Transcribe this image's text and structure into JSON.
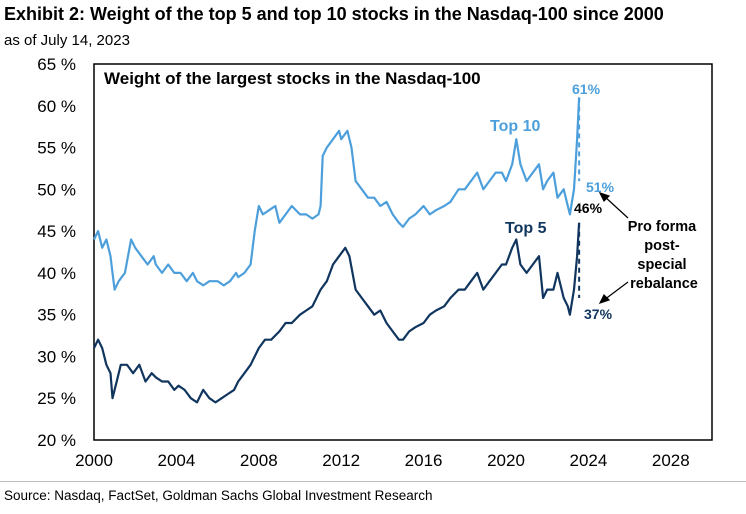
{
  "header": {
    "title": "Exhibit 2: Weight of the top 5 and top 10 stocks in the Nasdaq-100 since 2000",
    "subtitle": "as of July 14, 2023"
  },
  "footer": {
    "source": "Source: Nasdaq, FactSet, Goldman Sachs Global Investment Research"
  },
  "colors": {
    "top10": "#4d9fdc",
    "top5": "#10355e",
    "frame": "#000000"
  },
  "chart_data": {
    "type": "line",
    "title": "Weight of the largest stocks in the Nasdaq-100",
    "xlim": [
      2000,
      2030
    ],
    "ylim": [
      20,
      65
    ],
    "x_ticks": [
      {
        "value": 2000,
        "label": "2000"
      },
      {
        "value": 2004,
        "label": "2004"
      },
      {
        "value": 2008,
        "label": "2008"
      },
      {
        "value": 2012,
        "label": "2012"
      },
      {
        "value": 2016,
        "label": "2016"
      },
      {
        "value": 2020,
        "label": "2020"
      },
      {
        "value": 2024,
        "label": "2024"
      },
      {
        "value": 2028,
        "label": "2028"
      }
    ],
    "y_ticks": [
      {
        "value": 20,
        "label": "20 %"
      },
      {
        "value": 25,
        "label": "25 %"
      },
      {
        "value": 30,
        "label": "30 %"
      },
      {
        "value": 35,
        "label": "35 %"
      },
      {
        "value": 40,
        "label": "40 %"
      },
      {
        "value": 45,
        "label": "45 %"
      },
      {
        "value": 50,
        "label": "50 %"
      },
      {
        "value": 55,
        "label": "55 %"
      },
      {
        "value": 60,
        "label": "60 %"
      },
      {
        "value": 65,
        "label": "65 %"
      }
    ],
    "series": [
      {
        "name": "Top 10",
        "points": [
          [
            2000.0,
            44
          ],
          [
            2000.2,
            45
          ],
          [
            2000.4,
            43
          ],
          [
            2000.6,
            44
          ],
          [
            2000.8,
            42
          ],
          [
            2000.9,
            40
          ],
          [
            2001.0,
            38
          ],
          [
            2001.2,
            39
          ],
          [
            2001.5,
            40
          ],
          [
            2001.8,
            44
          ],
          [
            2002.0,
            43
          ],
          [
            2002.3,
            42
          ],
          [
            2002.6,
            41
          ],
          [
            2002.9,
            42
          ],
          [
            2003.0,
            41
          ],
          [
            2003.3,
            40
          ],
          [
            2003.6,
            41
          ],
          [
            2003.9,
            40
          ],
          [
            2004.2,
            40
          ],
          [
            2004.5,
            39
          ],
          [
            2004.8,
            40
          ],
          [
            2005.0,
            39
          ],
          [
            2005.3,
            38.5
          ],
          [
            2005.6,
            39
          ],
          [
            2006.0,
            39
          ],
          [
            2006.3,
            38.5
          ],
          [
            2006.6,
            39
          ],
          [
            2006.9,
            40
          ],
          [
            2007.0,
            39.5
          ],
          [
            2007.3,
            40
          ],
          [
            2007.6,
            41
          ],
          [
            2007.8,
            45
          ],
          [
            2008.0,
            48
          ],
          [
            2008.2,
            47
          ],
          [
            2008.5,
            47.5
          ],
          [
            2008.8,
            48
          ],
          [
            2009.0,
            46
          ],
          [
            2009.3,
            47
          ],
          [
            2009.6,
            48
          ],
          [
            2010.0,
            47
          ],
          [
            2010.3,
            47
          ],
          [
            2010.6,
            46.5
          ],
          [
            2010.9,
            47
          ],
          [
            2011.0,
            48
          ],
          [
            2011.1,
            54
          ],
          [
            2011.3,
            55
          ],
          [
            2011.6,
            56
          ],
          [
            2011.9,
            57
          ],
          [
            2012.0,
            56
          ],
          [
            2012.3,
            57
          ],
          [
            2012.5,
            55
          ],
          [
            2012.7,
            51
          ],
          [
            2013.0,
            50
          ],
          [
            2013.3,
            49
          ],
          [
            2013.6,
            49
          ],
          [
            2013.9,
            48
          ],
          [
            2014.2,
            48.5
          ],
          [
            2014.5,
            47
          ],
          [
            2014.8,
            46
          ],
          [
            2015.0,
            45.5
          ],
          [
            2015.3,
            46.5
          ],
          [
            2015.6,
            47
          ],
          [
            2016.0,
            48
          ],
          [
            2016.3,
            47
          ],
          [
            2016.6,
            47.5
          ],
          [
            2017.0,
            48
          ],
          [
            2017.3,
            48.5
          ],
          [
            2017.7,
            50
          ],
          [
            2018.0,
            50
          ],
          [
            2018.3,
            51
          ],
          [
            2018.6,
            52
          ],
          [
            2018.9,
            50
          ],
          [
            2019.2,
            51
          ],
          [
            2019.5,
            52
          ],
          [
            2019.8,
            52
          ],
          [
            2020.0,
            51
          ],
          [
            2020.3,
            53
          ],
          [
            2020.5,
            56
          ],
          [
            2020.7,
            53
          ],
          [
            2021.0,
            51
          ],
          [
            2021.3,
            52
          ],
          [
            2021.6,
            53
          ],
          [
            2021.8,
            50
          ],
          [
            2022.0,
            51
          ],
          [
            2022.3,
            52
          ],
          [
            2022.5,
            49
          ],
          [
            2022.8,
            50
          ],
          [
            2023.0,
            48
          ],
          [
            2023.1,
            47
          ],
          [
            2023.3,
            50
          ],
          [
            2023.45,
            56
          ],
          [
            2023.55,
            61
          ]
        ],
        "end_label": "61%",
        "pro_forma": [
          [
            2023.55,
            61
          ],
          [
            2023.55,
            51
          ]
        ],
        "pro_forma_label": "51%"
      },
      {
        "name": "Top 5",
        "points": [
          [
            2000.0,
            31
          ],
          [
            2000.2,
            32
          ],
          [
            2000.4,
            31
          ],
          [
            2000.6,
            29
          ],
          [
            2000.8,
            28
          ],
          [
            2000.9,
            25
          ],
          [
            2001.1,
            27
          ],
          [
            2001.3,
            29
          ],
          [
            2001.6,
            29
          ],
          [
            2001.9,
            28
          ],
          [
            2002.2,
            29
          ],
          [
            2002.5,
            27
          ],
          [
            2002.8,
            28
          ],
          [
            2003.0,
            27.5
          ],
          [
            2003.3,
            27
          ],
          [
            2003.6,
            27
          ],
          [
            2003.9,
            26
          ],
          [
            2004.1,
            26.5
          ],
          [
            2004.4,
            26
          ],
          [
            2004.7,
            25
          ],
          [
            2005.0,
            24.5
          ],
          [
            2005.3,
            26
          ],
          [
            2005.6,
            25
          ],
          [
            2005.9,
            24.5
          ],
          [
            2006.2,
            25
          ],
          [
            2006.5,
            25.5
          ],
          [
            2006.8,
            26
          ],
          [
            2007.0,
            27
          ],
          [
            2007.3,
            28
          ],
          [
            2007.6,
            29
          ],
          [
            2008.0,
            31
          ],
          [
            2008.3,
            32
          ],
          [
            2008.6,
            32
          ],
          [
            2009.0,
            33
          ],
          [
            2009.3,
            34
          ],
          [
            2009.6,
            34
          ],
          [
            2010.0,
            35
          ],
          [
            2010.3,
            35.5
          ],
          [
            2010.6,
            36
          ],
          [
            2011.0,
            38
          ],
          [
            2011.3,
            39
          ],
          [
            2011.6,
            41
          ],
          [
            2011.9,
            42
          ],
          [
            2012.2,
            43
          ],
          [
            2012.4,
            42
          ],
          [
            2012.7,
            38
          ],
          [
            2013.0,
            37
          ],
          [
            2013.3,
            36
          ],
          [
            2013.6,
            35
          ],
          [
            2013.9,
            35.5
          ],
          [
            2014.2,
            34
          ],
          [
            2014.5,
            33
          ],
          [
            2014.8,
            32
          ],
          [
            2015.0,
            32
          ],
          [
            2015.3,
            33
          ],
          [
            2015.6,
            33.5
          ],
          [
            2016.0,
            34
          ],
          [
            2016.3,
            35
          ],
          [
            2016.6,
            35.5
          ],
          [
            2017.0,
            36
          ],
          [
            2017.3,
            37
          ],
          [
            2017.7,
            38
          ],
          [
            2018.0,
            38
          ],
          [
            2018.3,
            39
          ],
          [
            2018.6,
            40
          ],
          [
            2018.9,
            38
          ],
          [
            2019.2,
            39
          ],
          [
            2019.5,
            40
          ],
          [
            2019.8,
            41
          ],
          [
            2020.0,
            41
          ],
          [
            2020.3,
            43
          ],
          [
            2020.5,
            44
          ],
          [
            2020.7,
            41
          ],
          [
            2021.0,
            40
          ],
          [
            2021.3,
            41
          ],
          [
            2021.6,
            42
          ],
          [
            2021.8,
            37
          ],
          [
            2022.0,
            38
          ],
          [
            2022.3,
            38
          ],
          [
            2022.5,
            40
          ],
          [
            2022.8,
            37
          ],
          [
            2023.0,
            36
          ],
          [
            2023.1,
            35
          ],
          [
            2023.3,
            38
          ],
          [
            2023.45,
            42
          ],
          [
            2023.55,
            46
          ]
        ],
        "end_label": "46%",
        "pro_forma": [
          [
            2023.55,
            46
          ],
          [
            2023.55,
            37
          ]
        ],
        "pro_forma_label": "37%"
      }
    ],
    "annotations": {
      "top10_label": "Top 10",
      "top5_label": "Top 5",
      "pro_forma": "Pro forma post-special rebalance"
    },
    "grid": false,
    "legend": "none"
  }
}
